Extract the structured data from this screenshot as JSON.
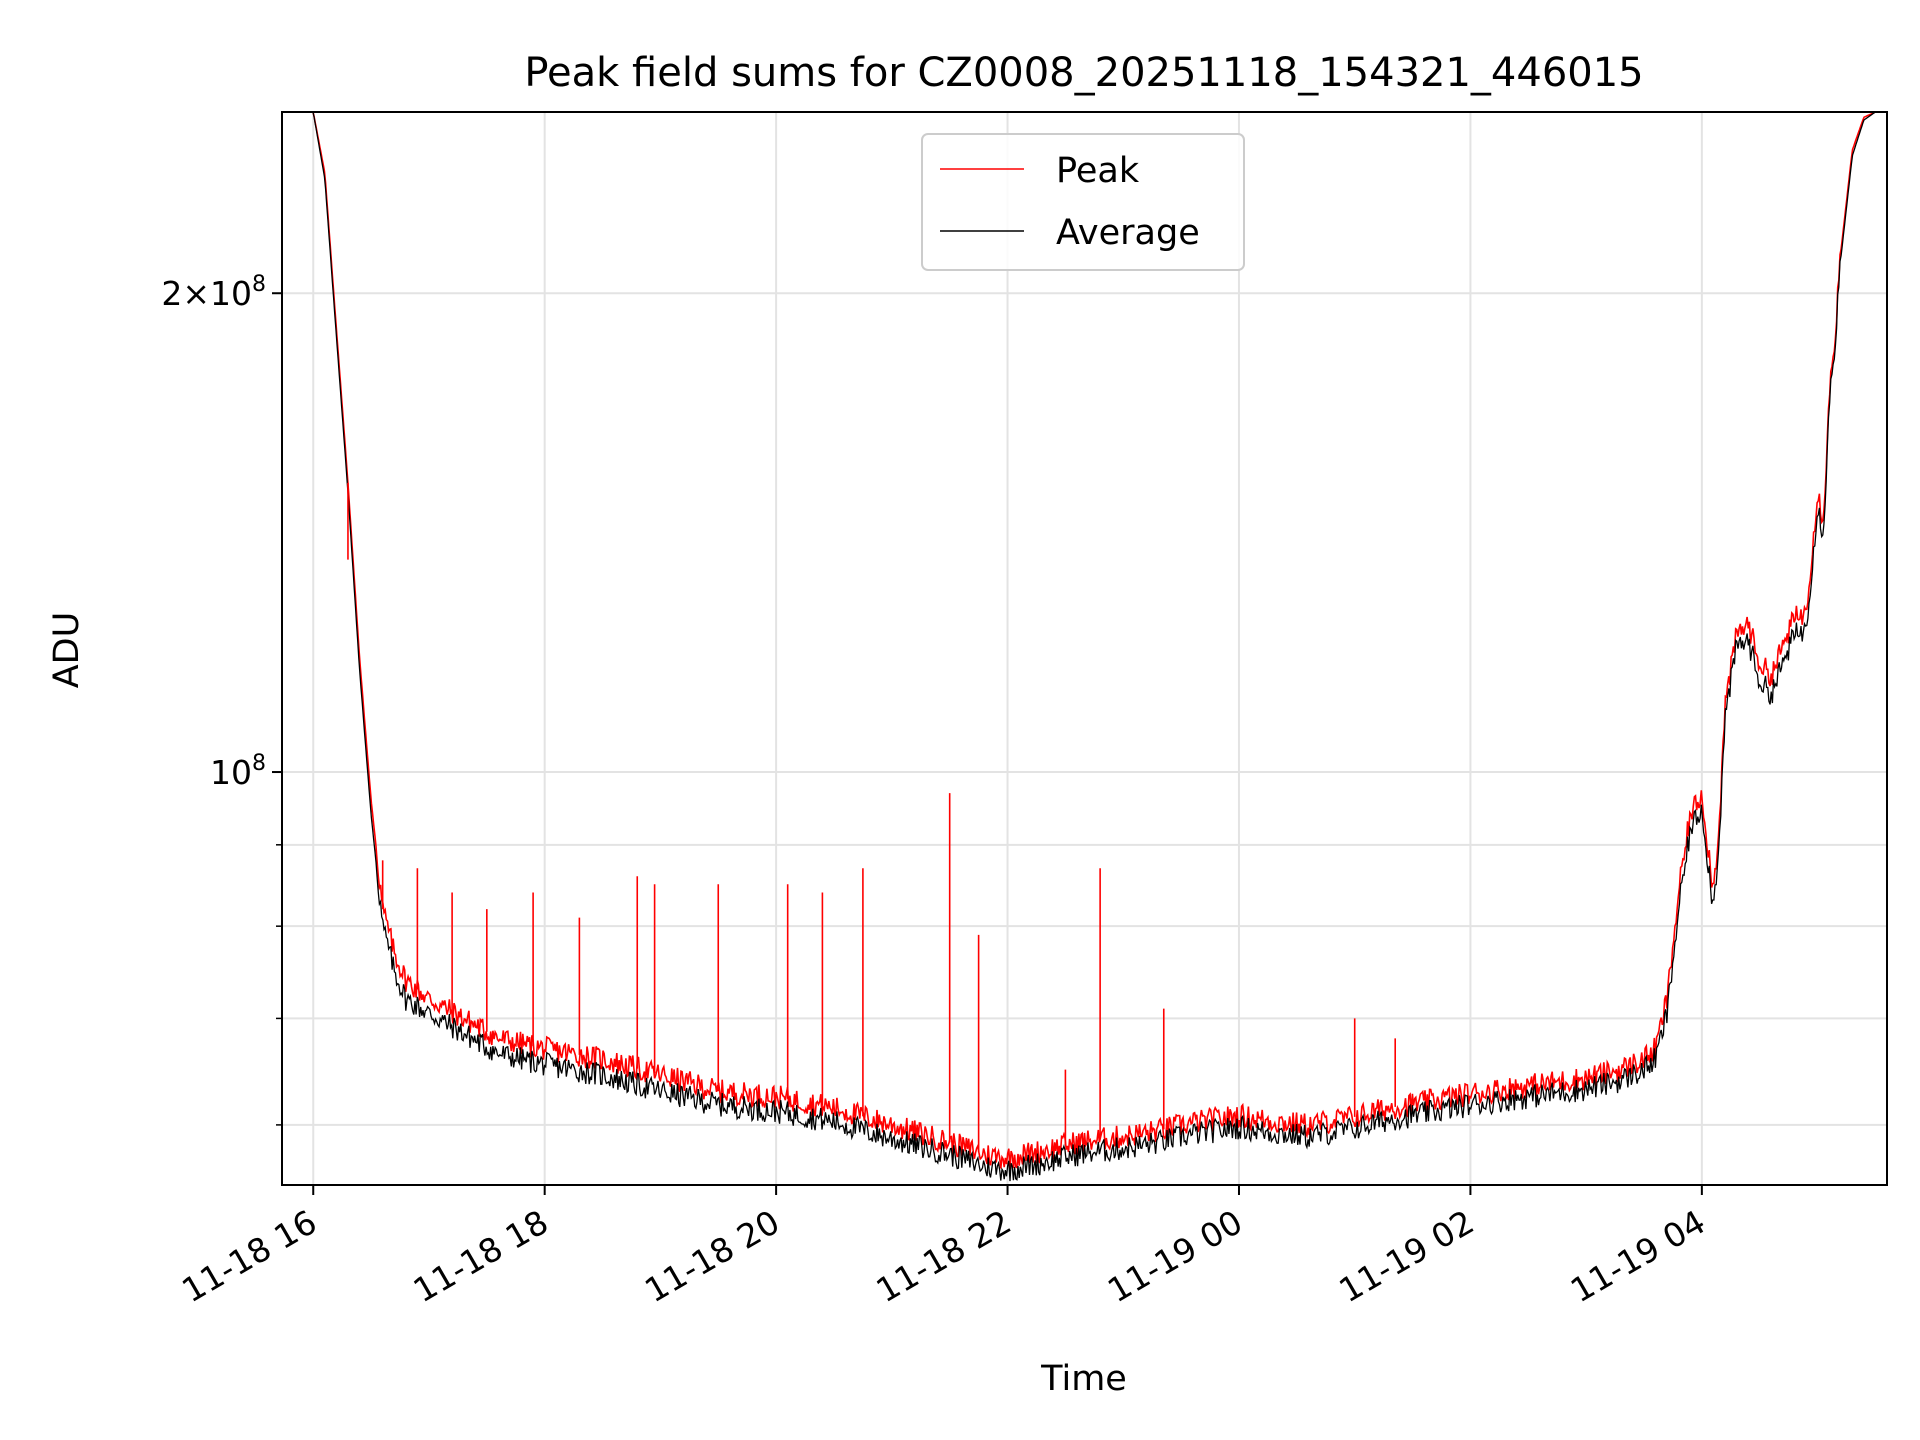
{
  "chart_data": {
    "type": "line",
    "title": "Peak field sums for CZ0008_20251118_154321_446015",
    "xlabel": "Time",
    "ylabel": "ADU",
    "y_scale": "log",
    "ylim": [
      55000000,
      260000000
    ],
    "xlim": [
      15.73,
      29.6
    ],
    "x_unit": "hours since 2025-11-18 00:00",
    "grid": true,
    "legend_location": "upper center",
    "x_ticks": [
      {
        "value": 16,
        "label": "11-18 16"
      },
      {
        "value": 18,
        "label": "11-18 18"
      },
      {
        "value": 20,
        "label": "11-18 20"
      },
      {
        "value": 22,
        "label": "11-18 22"
      },
      {
        "value": 24,
        "label": "11-19 00"
      },
      {
        "value": 26,
        "label": "11-19 02"
      },
      {
        "value": 28,
        "label": "11-19 04"
      }
    ],
    "y_major_ticks": [
      {
        "value": 100000000,
        "base": "10",
        "exp": "8"
      },
      {
        "value": 200000000,
        "coef": "2",
        "base": "10",
        "exp": "8"
      }
    ],
    "y_minor_ticks": [
      60000000,
      70000000,
      80000000,
      90000000
    ],
    "series": [
      {
        "name": "Peak",
        "color": "#ff0000",
        "x": [
          15.73,
          16.0,
          16.1,
          16.2,
          16.3,
          16.4,
          16.5,
          16.6,
          16.7,
          16.8,
          17.0,
          17.3,
          17.6,
          18.0,
          18.5,
          19.0,
          19.5,
          20.0,
          20.5,
          21.0,
          21.5,
          21.8,
          22.0,
          22.3,
          22.6,
          23.0,
          23.3,
          23.6,
          24.0,
          24.3,
          24.6,
          25.0,
          25.3,
          25.6,
          26.0,
          26.5,
          27.0,
          27.3,
          27.5,
          27.6,
          27.7,
          27.8,
          27.9,
          28.0,
          28.1,
          28.15,
          28.2,
          28.3,
          28.4,
          28.5,
          28.6,
          28.7,
          28.8,
          28.9,
          29.0,
          29.05,
          29.1,
          29.15,
          29.2,
          29.3,
          29.4,
          29.5,
          29.6
        ],
        "y": [
          260000000,
          260000000,
          238000000,
          190000000,
          152000000,
          118000000,
          96000000,
          82000000,
          77000000,
          74000000,
          72000000,
          70000000,
          68000000,
          67000000,
          66000000,
          64500000,
          63000000,
          62500000,
          61500000,
          60000000,
          58500000,
          57500000,
          57200000,
          57800000,
          58500000,
          59000000,
          59500000,
          60200000,
          60800000,
          60300000,
          60000000,
          60700000,
          61500000,
          62000000,
          62800000,
          63500000,
          64200000,
          65000000,
          66000000,
          67000000,
          72000000,
          84000000,
          94000000,
          97000000,
          84000000,
          93000000,
          110000000,
          122000000,
          124000000,
          117000000,
          115000000,
          120000000,
          125000000,
          126000000,
          150000000,
          144000000,
          172000000,
          188000000,
          212000000,
          246000000,
          258000000,
          260000000,
          260000000
        ]
      },
      {
        "name": "Average",
        "color": "#000000",
        "x": [
          15.73,
          16.0,
          16.1,
          16.2,
          16.3,
          16.4,
          16.5,
          16.6,
          16.7,
          16.8,
          17.0,
          17.3,
          17.6,
          18.0,
          18.5,
          19.0,
          19.5,
          20.0,
          20.5,
          21.0,
          21.5,
          21.8,
          22.0,
          22.3,
          22.6,
          23.0,
          23.3,
          23.6,
          24.0,
          24.3,
          24.6,
          25.0,
          25.3,
          25.6,
          26.0,
          26.5,
          27.0,
          27.3,
          27.5,
          27.6,
          27.7,
          27.8,
          27.9,
          28.0,
          28.1,
          28.15,
          28.2,
          28.3,
          28.4,
          28.5,
          28.6,
          28.7,
          28.8,
          28.9,
          29.0,
          29.05,
          29.1,
          29.15,
          29.2,
          29.3,
          29.4,
          29.5,
          29.6
        ],
        "y": [
          260000000,
          260000000,
          236000000,
          188000000,
          150000000,
          116000000,
          94000000,
          80000000,
          75000000,
          72000000,
          70500000,
          68500000,
          66500000,
          65500000,
          64500000,
          63000000,
          61800000,
          61200000,
          60300000,
          58800000,
          57500000,
          56500000,
          56200000,
          56800000,
          57500000,
          58000000,
          58500000,
          59200000,
          59800000,
          59300000,
          59000000,
          59700000,
          60500000,
          61000000,
          61800000,
          62500000,
          63200000,
          64000000,
          65000000,
          66000000,
          70500000,
          82000000,
          92000000,
          95000000,
          82000000,
          91000000,
          108000000,
          120000000,
          121000000,
          114000000,
          112000000,
          117000000,
          122000000,
          123000000,
          147000000,
          141000000,
          170000000,
          186000000,
          210000000,
          244000000,
          257000000,
          260000000,
          260000000
        ]
      }
    ],
    "spikes": {
      "x": [
        16.3,
        16.6,
        16.9,
        17.2,
        17.5,
        17.9,
        18.3,
        18.8,
        18.95,
        19.5,
        20.1,
        20.4,
        20.75,
        21.5,
        21.75,
        22.5,
        22.8,
        23.35,
        25.0,
        25.35
      ],
      "y": [
        136000000,
        88000000,
        87000000,
        84000000,
        82000000,
        84000000,
        81000000,
        86000000,
        85000000,
        85000000,
        85000000,
        84000000,
        87000000,
        97000000,
        79000000,
        65000000,
        87000000,
        71000000,
        70000000,
        68000000
      ]
    }
  }
}
